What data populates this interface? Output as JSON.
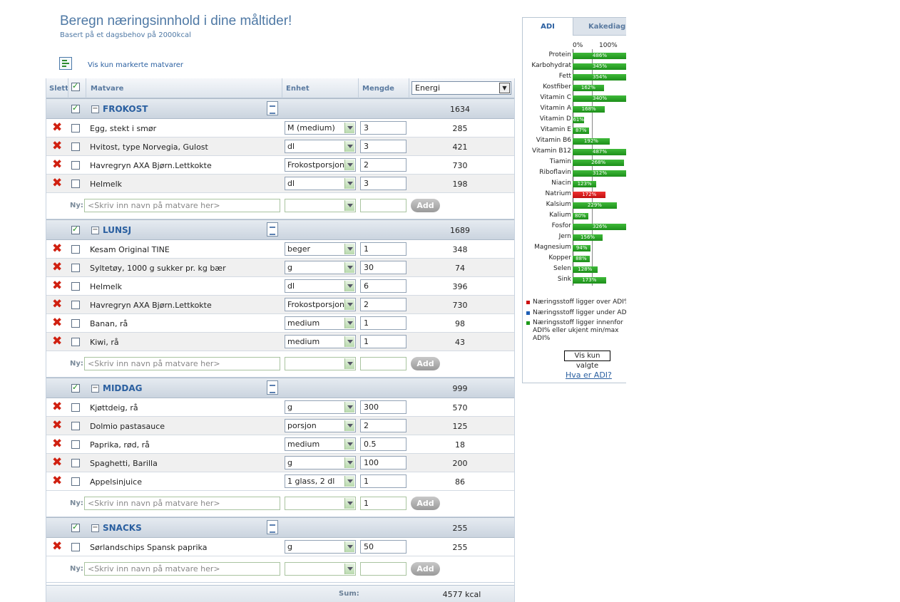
{
  "header": {
    "title": "Beregn næringsinnhold i dine måltider!",
    "subtitle": "Basert på et dagsbehov på 2000kcal",
    "filter_link": "Vis kun markerte matvarer"
  },
  "table": {
    "columns": {
      "delete": "Slett",
      "food": "Matvare",
      "unit": "Enhet",
      "amount": "Mengde",
      "measure": "Energi"
    },
    "new_label": "Ny:",
    "new_placeholder": "<Skriv inn navn på matvare her>",
    "add_label": "Add",
    "sum_label": "Sum:",
    "sum_value": "4577 kcal",
    "meals": [
      {
        "name": "FROKOST",
        "total": "1634",
        "new_qty": "",
        "items": [
          {
            "name": "Egg, stekt i smør",
            "unit": "M (medium)",
            "qty": "3",
            "value": "285"
          },
          {
            "name": "Hvitost, type Norvegia, Gulost",
            "unit": "dl",
            "qty": "3",
            "value": "421"
          },
          {
            "name": "Havregryn AXA Bjørn.Lettkokte",
            "unit": "Frokostporsjon",
            "qty": "2",
            "value": "730"
          },
          {
            "name": "Helmelk",
            "unit": "dl",
            "qty": "3",
            "value": "198"
          }
        ]
      },
      {
        "name": "LUNSJ",
        "total": "1689",
        "new_qty": "",
        "items": [
          {
            "name": "Kesam Original TINE",
            "unit": "beger",
            "qty": "1",
            "value": "348"
          },
          {
            "name": "Syltetøy, 1000 g sukker pr. kg bær",
            "unit": "g",
            "qty": "30",
            "value": "74"
          },
          {
            "name": "Helmelk",
            "unit": "dl",
            "qty": "6",
            "value": "396"
          },
          {
            "name": "Havregryn AXA Bjørn.Lettkokte",
            "unit": "Frokostporsjon",
            "qty": "2",
            "value": "730"
          },
          {
            "name": "Banan, rå",
            "unit": "medium",
            "qty": "1",
            "value": "98"
          },
          {
            "name": "Kiwi, rå",
            "unit": "medium",
            "qty": "1",
            "value": "43"
          }
        ]
      },
      {
        "name": "MIDDAG",
        "total": "999",
        "new_qty": "1",
        "items": [
          {
            "name": "Kjøttdeig, rå",
            "unit": "g",
            "qty": "300",
            "value": "570"
          },
          {
            "name": "Dolmio pastasauce",
            "unit": "porsjon",
            "qty": "2",
            "value": "125"
          },
          {
            "name": "Paprika, rød, rå",
            "unit": "medium",
            "qty": "0.5",
            "value": "18"
          },
          {
            "name": "Spaghetti, Barilla",
            "unit": "g",
            "qty": "100",
            "value": "200"
          },
          {
            "name": "Appelsinjuice",
            "unit": "1 glass, 2 dl",
            "qty": "1",
            "value": "86"
          }
        ]
      },
      {
        "name": "SNACKS",
        "total": "255",
        "new_qty": "",
        "items": [
          {
            "name": "Sørlandschips Spansk paprika",
            "unit": "g",
            "qty": "50",
            "value": "255"
          }
        ]
      }
    ]
  },
  "panel": {
    "tabs": [
      "ADI",
      "Kakediagram"
    ],
    "axis_labels": [
      "0%",
      "100%"
    ],
    "nutrients": [
      {
        "name": "Protein",
        "pct": 486,
        "label": "486%",
        "status": "green"
      },
      {
        "name": "Karbohydrat",
        "pct": 345,
        "label": "345%",
        "status": "green"
      },
      {
        "name": "Fett",
        "pct": 354,
        "label": "354%",
        "status": "green"
      },
      {
        "name": "Kostfiber",
        "pct": 162,
        "label": "162%",
        "status": "green"
      },
      {
        "name": "Vitamin C",
        "pct": 340,
        "label": "340%",
        "status": "green"
      },
      {
        "name": "Vitamin A",
        "pct": 168,
        "label": "168%",
        "status": "green"
      },
      {
        "name": "Vitamin D",
        "pct": 61,
        "label": "61%",
        "status": "green"
      },
      {
        "name": "Vitamin E",
        "pct": 87,
        "label": "87%",
        "status": "green"
      },
      {
        "name": "Vitamin B6",
        "pct": 192,
        "label": "192%",
        "status": "green"
      },
      {
        "name": "Vitamin B12",
        "pct": 487,
        "label": "487%",
        "status": "green"
      },
      {
        "name": "Tiamin",
        "pct": 268,
        "label": "268%",
        "status": "green"
      },
      {
        "name": "Riboflavin",
        "pct": 312,
        "label": "312%",
        "status": "green"
      },
      {
        "name": "Niacin",
        "pct": 123,
        "label": "123%",
        "status": "green"
      },
      {
        "name": "Natrium",
        "pct": 172,
        "label": "172%",
        "status": "red"
      },
      {
        "name": "Kalsium",
        "pct": 229,
        "label": "229%",
        "status": "green"
      },
      {
        "name": "Kalium",
        "pct": 80,
        "label": "80%",
        "status": "green"
      },
      {
        "name": "Fosfor",
        "pct": 326,
        "label": "326%",
        "status": "green"
      },
      {
        "name": "Jern",
        "pct": 156,
        "label": "156%",
        "status": "green"
      },
      {
        "name": "Magnesium",
        "pct": 94,
        "label": "94%",
        "status": "green"
      },
      {
        "name": "Kopper",
        "pct": 88,
        "label": "88%",
        "status": "green"
      },
      {
        "name": "Selen",
        "pct": 128,
        "label": "128%",
        "status": "green"
      },
      {
        "name": "Sink",
        "pct": 173,
        "label": "173%",
        "status": "green"
      }
    ],
    "legend": [
      {
        "text": "Næringsstoff ligger over ADI%",
        "color": "#cc1111"
      },
      {
        "text": "Næringsstoff ligger under ADI%",
        "color": "#1f5fb5"
      },
      {
        "text": "Næringsstoff ligger innenfor ADI% eller ukjent min/max ADI%",
        "color": "#1d9a1a"
      }
    ],
    "show_selected": "Vis kun valgte",
    "what_is_adi": "Hva er ADI?"
  },
  "colors": {
    "accent": "#2a5fa0",
    "title": "#4f79a5",
    "over": "#cc1111",
    "within": "#1d9a1a",
    "delete": "#d02010"
  }
}
